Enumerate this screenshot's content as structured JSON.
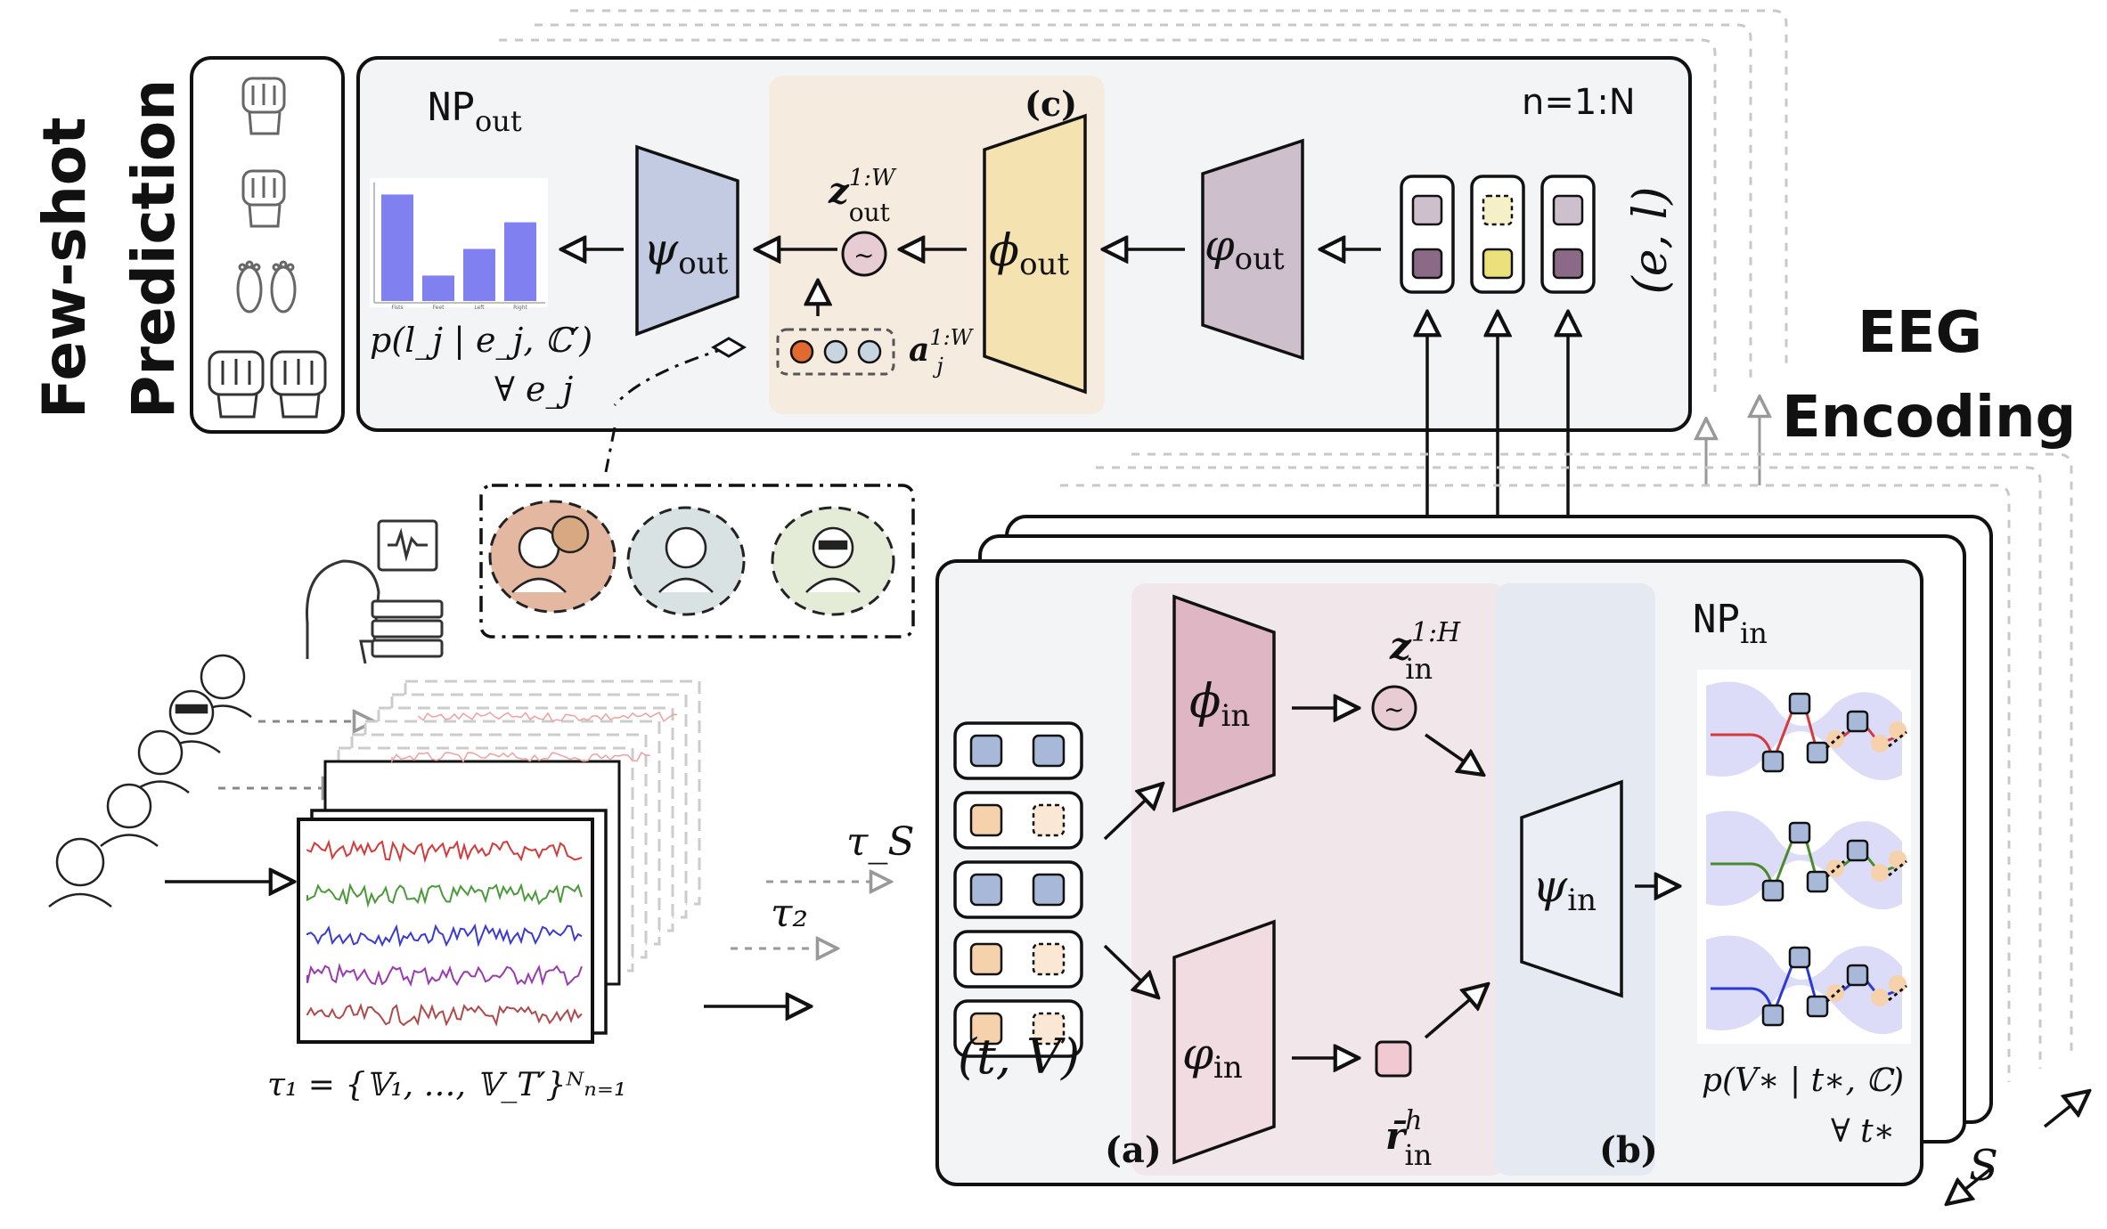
{
  "side": {
    "few_shot_line1": "Few-shot",
    "few_shot_line2": "Prediction",
    "eeg_line1": "EEG",
    "eeg_line2": "Encoding"
  },
  "np_out": {
    "title_base": "NP",
    "title_sub": "out",
    "panel_c": "(c)",
    "n_range": "n=1:N",
    "psi": "ψ",
    "psi_sub": "out",
    "phi": "ϕ",
    "phi_sub": "out",
    "varphi": "φ",
    "varphi_sub": "out",
    "z_base": "z",
    "z_sub": "out",
    "z_sup": "1:W",
    "a_base": "a",
    "a_sub": "j",
    "a_sup": "1:W",
    "el_label": "(e, l)",
    "pred_label": "p(l_j | e_j, ℂ′)",
    "forall_e": "∀ e_j",
    "bar_categories": [
      "Fists",
      "Feet",
      "Left",
      "Right"
    ],
    "bar_values": [
      0.92,
      0.22,
      0.45,
      0.68
    ]
  },
  "np_in": {
    "title_base": "NP",
    "title_sub": "in",
    "phi": "ϕ",
    "phi_sub": "in",
    "varphi": "φ",
    "varphi_sub": "in",
    "psi": "ψ",
    "psi_sub": "in",
    "z_base": "z",
    "z_sub": "in",
    "z_sup": "1:H",
    "r_base": "r̄",
    "r_sub": "in",
    "r_sup": "h",
    "panel_a": "(a)",
    "panel_b": "(b)",
    "tv_label": "(t, V)",
    "pred_label": "p(V∗ | t∗, ℂ)",
    "forall_t": "∀ t∗"
  },
  "tasks": {
    "tau1": "τ₁ = {𝕍₁, …, 𝕍_T′}ᴺₙ₌₁",
    "tau2": "τ₂",
    "tauS": "τ_S",
    "S": "S"
  },
  "colors": {
    "panel_bg": "#f3f4f6",
    "c_region": "#f5ebdf",
    "a_region": "#f1e7ea",
    "b_region": "#e5e9f2",
    "psi_out": "#c3cbe3",
    "phi_out": "#f4e2b0",
    "varphi_out": "#cdbfcc",
    "phi_in": "#dfb7c4",
    "varphi_in": "#f1dce2",
    "psi_in": "#eceef5",
    "bar": "#8080f0",
    "blue_square": "#a8b8d8",
    "orange_square": "#f6d2ac",
    "purple_square": "#8a6a86",
    "yellow_square": "#ebe07a"
  }
}
